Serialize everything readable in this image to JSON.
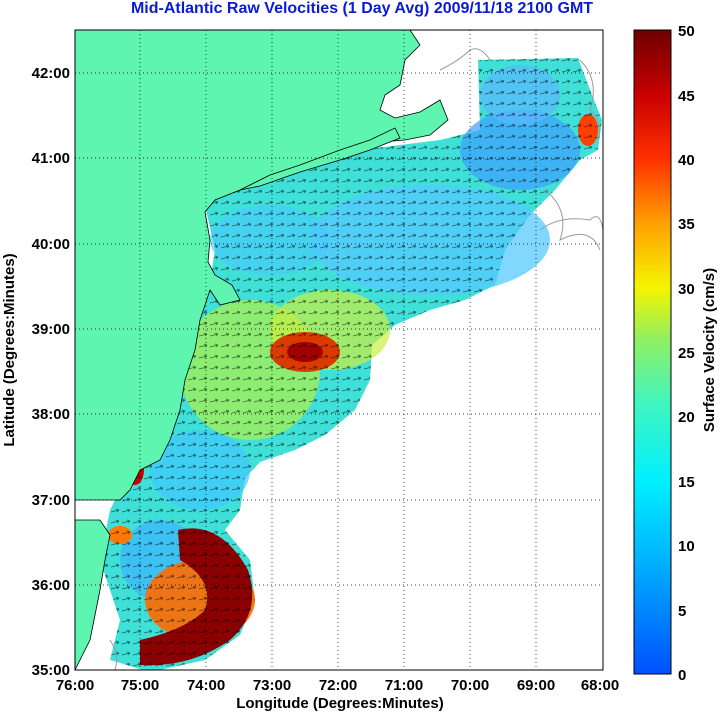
{
  "title": "Mid-Atlantic Raw Velocities (1 Day Avg) 2009/11/18 2100 GMT",
  "map": {
    "xlabel": "Longitude (Degrees:Minutes)",
    "ylabel": "Latitude (Degrees:Minutes)",
    "lon_ticks": [
      "76:00",
      "75:00",
      "74:00",
      "73:00",
      "72:00",
      "71:00",
      "70:00",
      "69:00",
      "68:00"
    ],
    "lat_ticks": [
      "42:00",
      "41:00",
      "40:00",
      "39:00",
      "38:00",
      "37:00",
      "36:00",
      "35:00"
    ],
    "lon_range": [
      -76,
      -68
    ],
    "lat_range": [
      35,
      42.5
    ],
    "land_color": "#5df5b0",
    "grid": "dotted",
    "hotspots": [
      {
        "lon": -74.3,
        "lat": 35.85,
        "speed": "high",
        "color": "#8b0000"
      },
      {
        "lon": -72.6,
        "lat": 38.75,
        "speed": "high",
        "color": "#d83a00"
      },
      {
        "lon": -75.1,
        "lat": 37.35,
        "speed": "high",
        "color": "#c80000"
      }
    ]
  },
  "colorbar": {
    "label": "Surface Velocity (cm/s)",
    "ticks": [
      "0",
      "5",
      "10",
      "15",
      "20",
      "25",
      "30",
      "35",
      "40",
      "45",
      "50"
    ],
    "range": [
      0,
      50
    ]
  }
}
